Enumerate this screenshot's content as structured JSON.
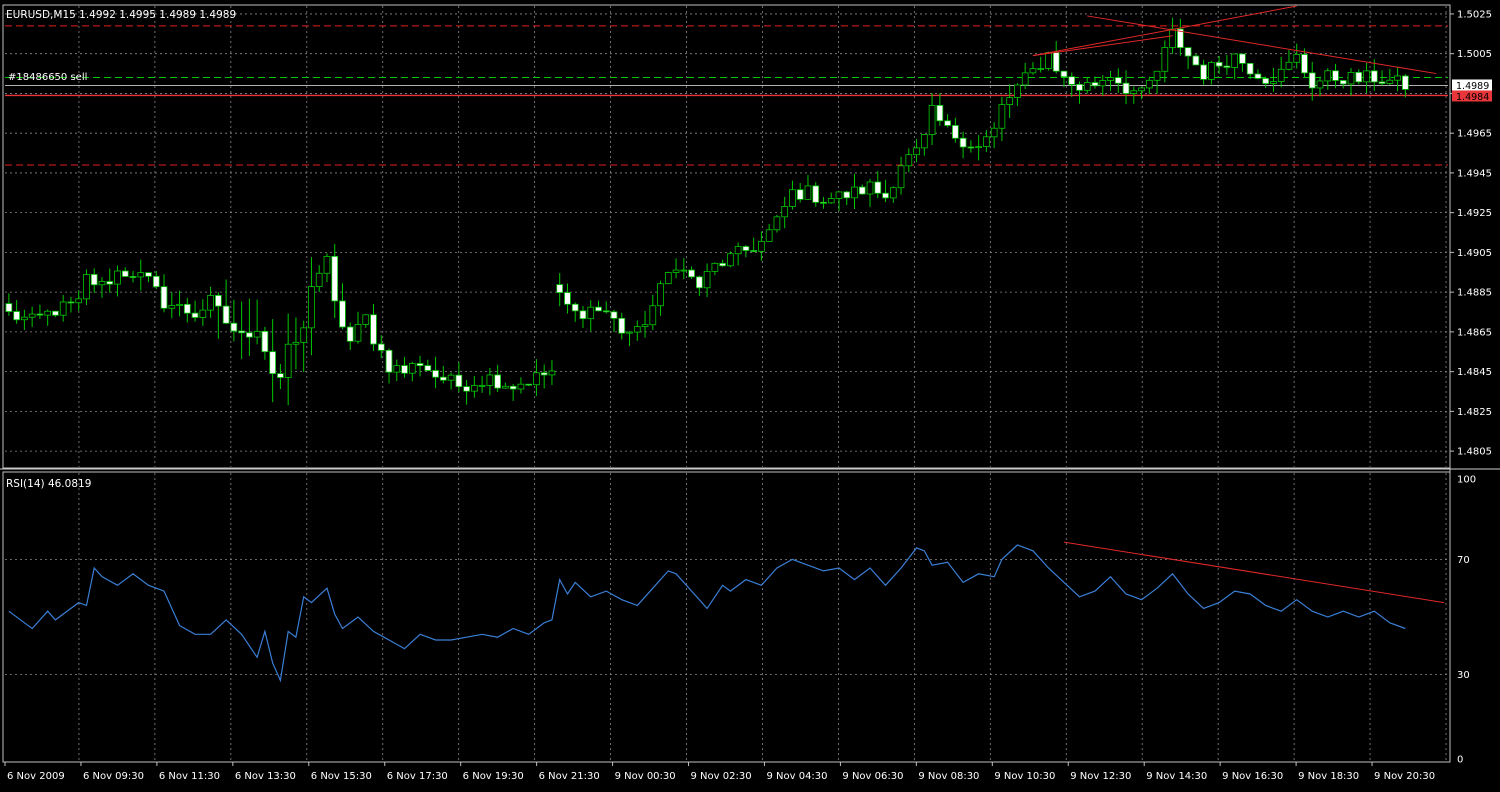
{
  "price_panel": {
    "header": "EURUSD,M15  1.4992 1.4995 1.4989 1.4989",
    "order_label": "#18486650 sell",
    "current_price_label": "1.4989",
    "order_price_label": "1.4984"
  },
  "rsi_panel": {
    "header": "RSI(14) 46.0819"
  },
  "chart_data": [
    {
      "type": "candlestick",
      "title": "EURUSD,M15  1.4992 1.4995 1.4989 1.4989",
      "ylim": [
        1.4797,
        1.5029
      ],
      "y_ticks": [
        "1.5025",
        "1.5005",
        "1.4985",
        "1.4965",
        "1.4945",
        "1.4925",
        "1.4905",
        "1.4885",
        "1.4865",
        "1.4845",
        "1.4825",
        "1.4805"
      ],
      "x_ticks": [
        "6 Nov 2009",
        "6 Nov 09:30",
        "6 Nov 11:30",
        "6 Nov 13:30",
        "6 Nov 15:30",
        "6 Nov 17:30",
        "6 Nov 19:30",
        "6 Nov 21:30",
        "9 Nov 00:30",
        "9 Nov 02:30",
        "9 Nov 04:30",
        "9 Nov 06:30",
        "9 Nov 08:30",
        "9 Nov 10:30",
        "9 Nov 12:30",
        "9 Nov 14:30",
        "9 Nov 16:30",
        "9 Nov 18:30",
        "9 Nov 20:30"
      ],
      "candle_colors": {
        "bull": "#00c800",
        "bear": "#00c800",
        "bull_body": "#000000",
        "bear_body": "#ffffff"
      },
      "close_path": [
        [
          0,
          1.4874
        ],
        [
          3,
          1.487
        ],
        [
          6,
          1.4876
        ],
        [
          9,
          1.4879
        ],
        [
          10,
          1.4892
        ],
        [
          12,
          1.4888
        ],
        [
          14,
          1.4895
        ],
        [
          16,
          1.4895
        ],
        [
          18,
          1.489
        ],
        [
          20,
          1.488
        ],
        [
          22,
          1.4877
        ],
        [
          24,
          1.4874
        ],
        [
          26,
          1.488
        ],
        [
          28,
          1.487
        ],
        [
          30,
          1.4862
        ],
        [
          32,
          1.4868
        ],
        [
          34,
          1.4845
        ],
        [
          35,
          1.4842
        ],
        [
          36,
          1.4855
        ],
        [
          38,
          1.4865
        ],
        [
          39,
          1.489
        ],
        [
          41,
          1.49
        ],
        [
          42,
          1.4878
        ],
        [
          44,
          1.486
        ],
        [
          46,
          1.4872
        ],
        [
          47,
          1.4862
        ],
        [
          49,
          1.4848
        ],
        [
          51,
          1.4845
        ],
        [
          53,
          1.485
        ],
        [
          55,
          1.4843
        ],
        [
          58,
          1.4838
        ],
        [
          62,
          1.4842
        ],
        [
          65,
          1.4838
        ],
        [
          68,
          1.4842
        ],
        [
          70,
          1.4845
        ],
        [
          71,
          1.4882
        ],
        [
          73,
          1.4874
        ],
        [
          75,
          1.4877
        ],
        [
          77,
          1.4875
        ],
        [
          79,
          1.4866
        ],
        [
          81,
          1.4864
        ],
        [
          83,
          1.4878
        ],
        [
          85,
          1.4894
        ],
        [
          86,
          1.49
        ],
        [
          87,
          1.4895
        ],
        [
          89,
          1.4888
        ],
        [
          91,
          1.4898
        ],
        [
          93,
          1.4902
        ],
        [
          95,
          1.4906
        ],
        [
          97,
          1.491
        ],
        [
          99,
          1.492
        ],
        [
          101,
          1.4935
        ],
        [
          103,
          1.4935
        ],
        [
          105,
          1.4932
        ],
        [
          107,
          1.4933
        ],
        [
          109,
          1.4935
        ],
        [
          111,
          1.4938
        ],
        [
          113,
          1.4933
        ],
        [
          115,
          1.495
        ],
        [
          117,
          1.4955
        ],
        [
          118,
          1.4962
        ],
        [
          119,
          1.4975
        ],
        [
          121,
          1.4966
        ],
        [
          123,
          1.4962
        ],
        [
          125,
          1.4958
        ],
        [
          127,
          1.4966
        ],
        [
          128,
          1.4978
        ],
        [
          130,
          1.4988
        ],
        [
          132,
          1.4996
        ],
        [
          134,
          1.5005
        ],
        [
          136,
          1.4992
        ],
        [
          138,
          1.4988
        ],
        [
          140,
          1.499
        ],
        [
          142,
          1.4995
        ],
        [
          144,
          1.4988
        ],
        [
          146,
          1.4984
        ],
        [
          148,
          1.4996
        ],
        [
          150,
          1.5015
        ],
        [
          152,
          1.5004
        ],
        [
          154,
          1.4995
        ],
        [
          156,
          1.5
        ],
        [
          158,
          1.5004
        ],
        [
          160,
          1.4998
        ],
        [
          162,
          1.4993
        ],
        [
          164,
          1.4995
        ],
        [
          166,
          1.5003
        ],
        [
          168,
          1.499
        ],
        [
          170,
          1.4993
        ],
        [
          172,
          1.4993
        ],
        [
          174,
          1.4992
        ],
        [
          176,
          1.4993
        ],
        [
          178,
          1.4991
        ],
        [
          180,
          1.4989
        ]
      ],
      "sell_level": 1.4984,
      "current_price": 1.4989,
      "green_dashed_level": 1.4993,
      "red_dashed_levels": [
        1.5019,
        1.4949
      ],
      "trendlines": [
        {
          "from": [
            132,
            1.5004
          ],
          "to": [
            166,
            1.5029
          ]
        },
        {
          "from": [
            139,
            1.5024
          ],
          "to": [
            184,
            1.4995
          ]
        },
        {
          "from": [
            132,
            1.5004
          ],
          "to": [
            150,
            1.5014
          ]
        }
      ]
    },
    {
      "type": "line",
      "title": "RSI(14) 46.0819",
      "ylim": [
        0,
        100
      ],
      "y_ticks": [
        100,
        70,
        30,
        0
      ],
      "line_color": "#3a7fd6",
      "series": [
        {
          "values": [
            [
              0,
              52
            ],
            [
              2,
              48
            ],
            [
              3,
              46
            ],
            [
              5,
              52
            ],
            [
              6,
              49
            ],
            [
              8,
              53
            ],
            [
              9,
              55
            ],
            [
              10,
              54
            ],
            [
              11,
              67
            ],
            [
              12,
              64
            ],
            [
              14,
              61
            ],
            [
              16,
              65
            ],
            [
              18,
              61
            ],
            [
              20,
              59
            ],
            [
              22,
              47
            ],
            [
              24,
              44
            ],
            [
              26,
              44
            ],
            [
              28,
              49
            ],
            [
              30,
              44
            ],
            [
              32,
              36
            ],
            [
              33,
              45
            ],
            [
              34,
              34
            ],
            [
              35,
              28
            ],
            [
              36,
              45
            ],
            [
              37,
              43
            ],
            [
              38,
              57
            ],
            [
              39,
              55
            ],
            [
              41,
              60
            ],
            [
              42,
              51
            ],
            [
              43,
              46
            ],
            [
              45,
              50
            ],
            [
              47,
              45
            ],
            [
              49,
              42
            ],
            [
              51,
              39
            ],
            [
              53,
              44
            ],
            [
              55,
              42
            ],
            [
              57,
              42
            ],
            [
              59,
              43
            ],
            [
              61,
              44
            ],
            [
              63,
              43
            ],
            [
              65,
              46
            ],
            [
              67,
              44
            ],
            [
              69,
              48
            ],
            [
              70,
              49
            ],
            [
              71,
              63
            ],
            [
              72,
              58
            ],
            [
              73,
              62
            ],
            [
              75,
              57
            ],
            [
              77,
              59
            ],
            [
              79,
              56
            ],
            [
              81,
              54
            ],
            [
              83,
              60
            ],
            [
              85,
              66
            ],
            [
              86,
              65
            ],
            [
              88,
              59
            ],
            [
              90,
              53
            ],
            [
              92,
              61
            ],
            [
              93,
              59
            ],
            [
              95,
              63
            ],
            [
              97,
              61
            ],
            [
              99,
              67
            ],
            [
              101,
              70
            ],
            [
              103,
              68
            ],
            [
              105,
              66
            ],
            [
              107,
              67
            ],
            [
              109,
              63
            ],
            [
              111,
              67
            ],
            [
              113,
              61
            ],
            [
              115,
              67
            ],
            [
              117,
              74
            ],
            [
              118,
              73
            ],
            [
              119,
              68
            ],
            [
              121,
              69
            ],
            [
              123,
              62
            ],
            [
              125,
              65
            ],
            [
              127,
              64
            ],
            [
              128,
              70
            ],
            [
              130,
              75
            ],
            [
              132,
              73
            ],
            [
              134,
              67
            ],
            [
              136,
              62
            ],
            [
              138,
              57
            ],
            [
              140,
              59
            ],
            [
              142,
              64
            ],
            [
              144,
              58
            ],
            [
              146,
              56
            ],
            [
              148,
              60
            ],
            [
              150,
              65
            ],
            [
              152,
              58
            ],
            [
              154,
              53
            ],
            [
              156,
              55
            ],
            [
              158,
              59
            ],
            [
              160,
              58
            ],
            [
              162,
              54
            ],
            [
              164,
              52
            ],
            [
              166,
              56
            ],
            [
              168,
              52
            ],
            [
              170,
              50
            ],
            [
              172,
              52
            ],
            [
              174,
              50
            ],
            [
              176,
              52
            ],
            [
              178,
              48
            ],
            [
              180,
              46
            ]
          ]
        }
      ],
      "trendline": {
        "from": [
          136,
          76
        ],
        "to": [
          185,
          55
        ]
      }
    }
  ]
}
